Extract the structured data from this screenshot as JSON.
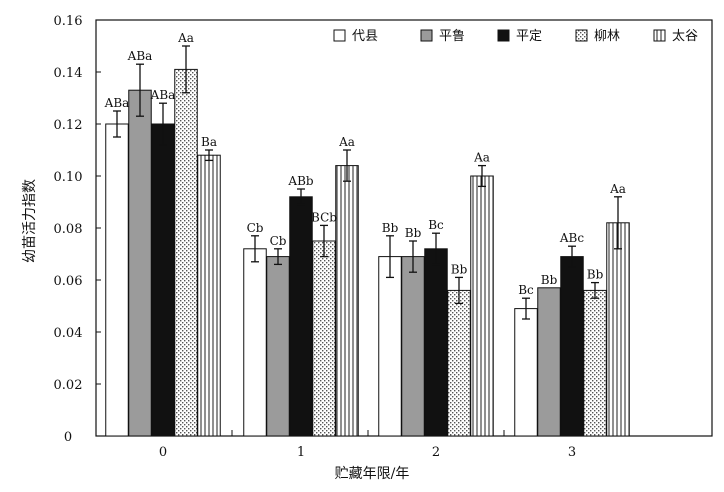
{
  "chart_data": {
    "type": "bar",
    "title": "",
    "xlabel": "贮藏年限/年",
    "ylabel": "幼苗活力指数",
    "ylim": [
      0,
      0.16
    ],
    "yticks": [
      0,
      0.02,
      0.04,
      0.06,
      0.08,
      0.1,
      0.12,
      0.14,
      0.16
    ],
    "ytick_labels": [
      "0",
      "0.02",
      "0.04",
      "0.06",
      "0.08",
      "0.10",
      "0.12",
      "0.14",
      "0.16"
    ],
    "categories": [
      "0",
      "1",
      "2",
      "3"
    ],
    "legend_position": "top-right",
    "grid": false,
    "series": [
      {
        "name": "代县",
        "pattern": "white",
        "values": [
          0.12,
          0.072,
          0.069,
          0.049
        ],
        "errors": [
          0.005,
          0.005,
          0.008,
          0.004
        ],
        "labels": [
          "ABa",
          "Cb",
          "Bb",
          "Bc"
        ]
      },
      {
        "name": "平鲁",
        "pattern": "gray",
        "values": [
          0.133,
          0.069,
          0.069,
          0.057
        ],
        "errors": [
          0.01,
          0.003,
          0.006,
          0.0
        ],
        "labels": [
          "ABa",
          "Cb",
          "Bb",
          "Bb"
        ]
      },
      {
        "name": "平定",
        "pattern": "black",
        "values": [
          0.12,
          0.092,
          0.072,
          0.069
        ],
        "errors": [
          0.008,
          0.003,
          0.006,
          0.004
        ],
        "labels": [
          "ABa",
          "ABb",
          "Bc",
          "ABc"
        ]
      },
      {
        "name": "柳林",
        "pattern": "dots",
        "values": [
          0.141,
          0.075,
          0.056,
          0.056
        ],
        "errors": [
          0.009,
          0.006,
          0.005,
          0.003
        ],
        "labels": [
          "Aa",
          "BCb",
          "Bb",
          "Bb"
        ]
      },
      {
        "name": "太谷",
        "pattern": "vlines",
        "values": [
          0.108,
          0.104,
          0.1,
          0.082
        ],
        "errors": [
          0.002,
          0.006,
          0.004,
          0.01
        ],
        "labels": [
          "Ba",
          "Aa",
          "Aa",
          "Aa"
        ]
      }
    ]
  }
}
